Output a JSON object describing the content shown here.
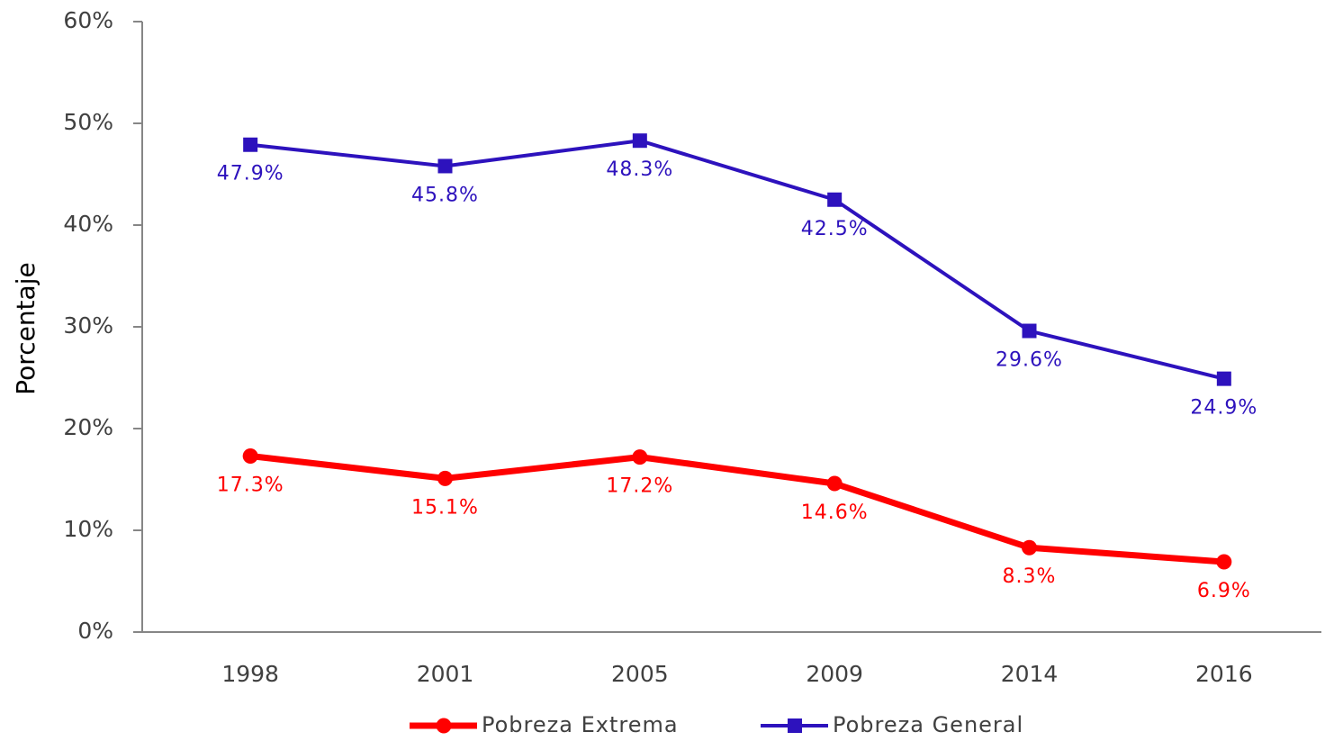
{
  "chart_data": {
    "type": "line",
    "y_label": "Porcentaje",
    "categories": [
      "1998",
      "2001",
      "2005",
      "2009",
      "2014",
      "2016"
    ],
    "series": [
      {
        "name": "Pobreza Extrema",
        "color": "#ff0000",
        "marker": "circle",
        "values": [
          17.3,
          15.1,
          17.2,
          14.6,
          8.3,
          6.9
        ],
        "value_labels": [
          "17.3%",
          "15.1%",
          "17.2%",
          "14.6%",
          "8.3%",
          "6.9%"
        ]
      },
      {
        "name": "Pobreza General",
        "color": "#2d12bd",
        "marker": "square",
        "values": [
          47.9,
          45.8,
          48.3,
          42.5,
          29.6,
          24.9
        ],
        "value_labels": [
          "47.9%",
          "45.8%",
          "48.3%",
          "42.5%",
          "29.6%",
          "24.9%"
        ]
      }
    ],
    "ylim": [
      0,
      60
    ],
    "yticks": [
      {
        "value": 0,
        "label": "0%"
      },
      {
        "value": 10,
        "label": "10%"
      },
      {
        "value": 20,
        "label": "20%"
      },
      {
        "value": 30,
        "label": "30%"
      },
      {
        "value": 40,
        "label": "40%"
      },
      {
        "value": 50,
        "label": "50%"
      },
      {
        "value": 60,
        "label": "60%"
      }
    ],
    "grid": false,
    "legend": "bottom"
  }
}
